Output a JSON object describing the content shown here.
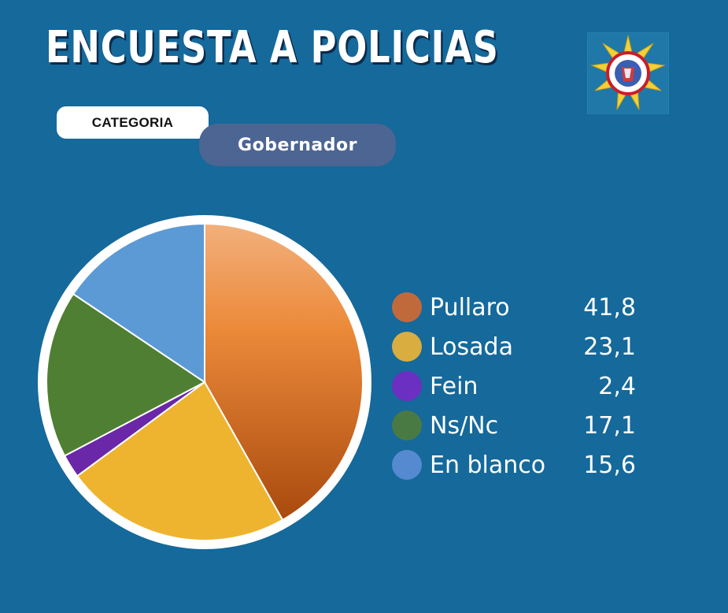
{
  "title": "ENCUESTA A POLICIAS",
  "category_label": "CATEGORIA",
  "category_value": "Gobernador",
  "logo": {
    "name": "police-badge-logo",
    "text": "UNION DE TRABAJADORES POLICIALES SANTA FE"
  },
  "colors": {
    "background": "#15699b",
    "pill_dark": "#4c6592"
  },
  "chart_data": {
    "type": "pie",
    "title": "",
    "legend_position": "right",
    "slices": [
      {
        "label": "Pullaro",
        "value": 41.8,
        "display": "41,8",
        "color": "#e07c34",
        "legend_color": "#c06a3c"
      },
      {
        "label": "Losada",
        "value": 23.1,
        "display": "23,1",
        "color": "#eeb430",
        "legend_color": "#d9ad40"
      },
      {
        "label": "Fein",
        "value": 2.4,
        "display": "2,4",
        "color": "#6a28a8",
        "legend_color": "#6b2fc2"
      },
      {
        "label": "Ns/Nc",
        "value": 17.1,
        "display": "17,1",
        "color": "#4f7f32",
        "legend_color": "#4a7a44"
      },
      {
        "label": "En blanco",
        "value": 15.6,
        "display": "15,6",
        "color": "#5c9ad6",
        "legend_color": "#5589d0"
      }
    ]
  }
}
